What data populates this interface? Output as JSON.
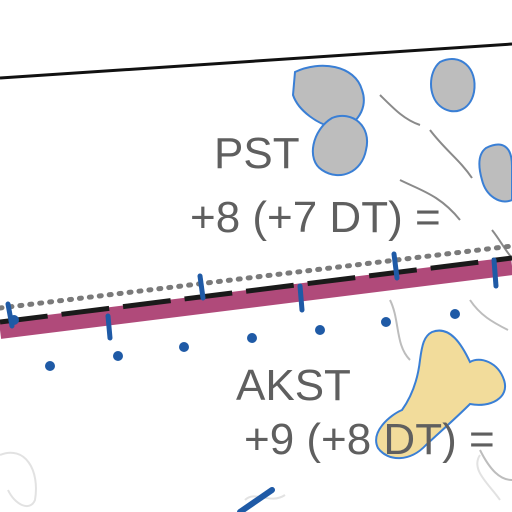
{
  "map": {
    "labels": {
      "upper_zone_name": "PST",
      "upper_zone_offset": "+8 (+7 DT) = ",
      "lower_zone_name": "AKST",
      "lower_zone_offset": "+9 (+8 DT) ="
    },
    "colors": {
      "background": "#ffffff",
      "boundary_band": "#b04a7a",
      "boundary_dash": "#1a1a1a",
      "tick_marks": "#1f5aa6",
      "dotted_line": "#7a7a7a",
      "land_gray": "#bdbdbd",
      "land_yellow": "#f2dc9b",
      "coastline_blue": "#3a7fd5",
      "label_text": "#5f5f5f"
    }
  }
}
